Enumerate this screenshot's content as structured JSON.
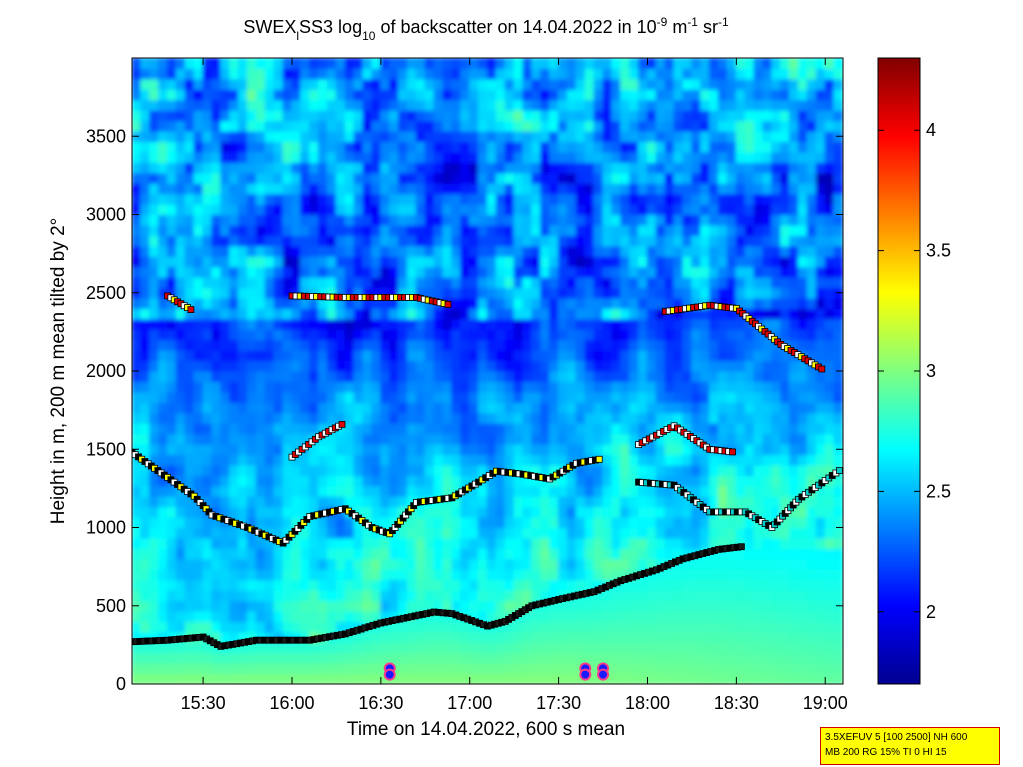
{
  "chart_data": {
    "type": "heatmap",
    "title": {
      "pre": "SWEX",
      "sub1": "l",
      "mid": "SS3 log",
      "sub2": "10",
      "post": " of backscatter on 14.04.2022 in 10",
      "sup1": "-9",
      "unit1": " m",
      "sup2": "-1",
      "unit2": " sr",
      "sup3": "-1"
    },
    "xlabel": "Time on 14.04.2022, 600 s mean",
    "ylabel": "Height in m, 200 m mean tilted by 2°",
    "x_unit": "hours",
    "xlim": [
      15.1,
      19.1
    ],
    "ylim": [
      0,
      4000
    ],
    "x_ticks": [
      {
        "value": 15.5,
        "label": "15:30"
      },
      {
        "value": 16.0,
        "label": "16:00"
      },
      {
        "value": 16.5,
        "label": "16:30"
      },
      {
        "value": 17.0,
        "label": "17:00"
      },
      {
        "value": 17.5,
        "label": "17:30"
      },
      {
        "value": 18.0,
        "label": "18:00"
      },
      {
        "value": 18.5,
        "label": "18:30"
      },
      {
        "value": 19.0,
        "label": "19:00"
      }
    ],
    "y_ticks": [
      0,
      500,
      1000,
      1500,
      2000,
      2500,
      3000,
      3500
    ],
    "colorbar": {
      "range": [
        1.7,
        4.3
      ],
      "ticks": [
        2,
        2.5,
        3,
        3.5,
        4
      ],
      "colormap": "jet"
    },
    "layers": {
      "low_cloud_top": [
        [
          15.1,
          270
        ],
        [
          15.3,
          280
        ],
        [
          15.5,
          300
        ],
        [
          15.6,
          240
        ],
        [
          15.8,
          280
        ],
        [
          16.1,
          280
        ],
        [
          16.3,
          320
        ],
        [
          16.5,
          390
        ],
        [
          16.8,
          460
        ],
        [
          16.9,
          450
        ],
        [
          17.1,
          370
        ],
        [
          17.2,
          400
        ],
        [
          17.35,
          500
        ],
        [
          17.5,
          540
        ],
        [
          17.7,
          590
        ],
        [
          17.85,
          660
        ],
        [
          18.05,
          730
        ],
        [
          18.2,
          800
        ],
        [
          18.4,
          860
        ],
        [
          18.55,
          880
        ]
      ],
      "layer_1000_1500": [
        [
          15.1,
          1480
        ],
        [
          15.3,
          1320
        ],
        [
          15.45,
          1200
        ],
        [
          15.55,
          1080
        ],
        [
          15.75,
          1000
        ],
        [
          15.95,
          900
        ],
        [
          16.1,
          1070
        ],
        [
          16.3,
          1120
        ],
        [
          16.45,
          1000
        ],
        [
          16.55,
          960
        ],
        [
          16.7,
          1160
        ],
        [
          16.9,
          1190
        ],
        [
          17.05,
          1290
        ],
        [
          17.15,
          1360
        ],
        [
          17.3,
          1340
        ],
        [
          17.45,
          1310
        ],
        [
          17.6,
          1410
        ],
        [
          17.75,
          1440
        ]
      ],
      "layer_1100_1400": [
        [
          17.95,
          1290
        ],
        [
          18.15,
          1270
        ],
        [
          18.35,
          1100
        ],
        [
          18.55,
          1100
        ],
        [
          18.7,
          1000
        ],
        [
          18.85,
          1180
        ],
        [
          19.0,
          1300
        ],
        [
          19.1,
          1380
        ]
      ],
      "layer_1400_1700": [
        [
          16.0,
          1450
        ],
        [
          16.15,
          1580
        ],
        [
          16.3,
          1670
        ],
        [
          17.95,
          1530
        ],
        [
          18.15,
          1650
        ],
        [
          18.35,
          1500
        ],
        [
          18.5,
          1480
        ]
      ],
      "layer_2000_2500": [
        [
          15.3,
          2480
        ],
        [
          15.45,
          2380
        ],
        [
          16.0,
          2480
        ],
        [
          16.3,
          2470
        ],
        [
          16.7,
          2470
        ],
        [
          16.9,
          2420
        ],
        [
          17.45,
          2400
        ],
        [
          18.1,
          2380
        ],
        [
          18.35,
          2420
        ],
        [
          18.5,
          2400
        ],
        [
          18.75,
          2170
        ],
        [
          19.0,
          2000
        ]
      ]
    },
    "markers": [
      {
        "x": 16.55,
        "y": 100,
        "label": "precip"
      },
      {
        "x": 16.55,
        "y": 60,
        "label": "precip"
      },
      {
        "x": 17.65,
        "y": 100,
        "label": "precip"
      },
      {
        "x": 17.65,
        "y": 60,
        "label": "precip"
      },
      {
        "x": 17.75,
        "y": 100,
        "label": "precip"
      },
      {
        "x": 17.75,
        "y": 60,
        "label": "precip"
      }
    ]
  },
  "info_box": {
    "line1": "3.5XEFUV 5 [100 2500] NH 600",
    "line2": "MB 200 RG 15% TI 0 HI 15"
  }
}
